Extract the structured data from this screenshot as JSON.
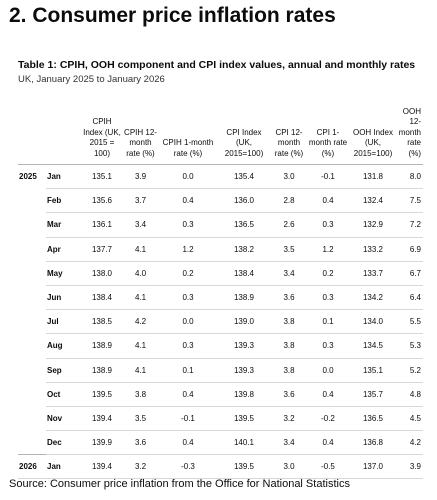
{
  "section": {
    "number": "2.",
    "title": "Consumer price inflation rates"
  },
  "table": {
    "title": "Table 1: CPIH, OOH component and CPI index values, annual and monthly rates",
    "subtitle": "UK, January 2025 to January 2026",
    "columns": [
      "",
      "",
      "CPIH Index (UK, 2015 = 100)",
      "CPIH 12-month rate (%)",
      "CPIH 1-month rate (%)",
      "CPI Index (UK, 2015=100)",
      "CPI 12-month rate (%)",
      "CPI 1-month rate (%)",
      "OOH Index (UK, 2015=100)",
      "OOH 12-month rate (%)"
    ],
    "rows": [
      {
        "year": "2025",
        "month": "Jan",
        "values": [
          "135.1",
          "3.9",
          "0.0",
          "135.4",
          "3.0",
          "-0.1",
          "131.8",
          "8.0"
        ]
      },
      {
        "year": "",
        "month": "Feb",
        "values": [
          "135.6",
          "3.7",
          "0.4",
          "136.0",
          "2.8",
          "0.4",
          "132.4",
          "7.5"
        ]
      },
      {
        "year": "",
        "month": "Mar",
        "values": [
          "136.1",
          "3.4",
          "0.3",
          "136.5",
          "2.6",
          "0.3",
          "132.9",
          "7.2"
        ]
      },
      {
        "year": "",
        "month": "Apr",
        "values": [
          "137.7",
          "4.1",
          "1.2",
          "138.2",
          "3.5",
          "1.2",
          "133.2",
          "6.9"
        ]
      },
      {
        "year": "",
        "month": "May",
        "values": [
          "138.0",
          "4.0",
          "0.2",
          "138.4",
          "3.4",
          "0.2",
          "133.7",
          "6.7"
        ]
      },
      {
        "year": "",
        "month": "Jun",
        "values": [
          "138.4",
          "4.1",
          "0.3",
          "138.9",
          "3.6",
          "0.3",
          "134.2",
          "6.4"
        ]
      },
      {
        "year": "",
        "month": "Jul",
        "values": [
          "138.5",
          "4.2",
          "0.0",
          "139.0",
          "3.8",
          "0.1",
          "134.0",
          "5.5"
        ]
      },
      {
        "year": "",
        "month": "Aug",
        "values": [
          "138.9",
          "4.1",
          "0.3",
          "139.3",
          "3.8",
          "0.3",
          "134.5",
          "5.3"
        ]
      },
      {
        "year": "",
        "month": "Sep",
        "values": [
          "138.9",
          "4.1",
          "0.1",
          "139.3",
          "3.8",
          "0.0",
          "135.1",
          "5.2"
        ]
      },
      {
        "year": "",
        "month": "Oct",
        "values": [
          "139.5",
          "3.8",
          "0.4",
          "139.8",
          "3.6",
          "0.4",
          "135.7",
          "4.8"
        ]
      },
      {
        "year": "",
        "month": "Nov",
        "values": [
          "139.4",
          "3.5",
          "-0.1",
          "139.5",
          "3.2",
          "-0.2",
          "136.5",
          "4.5"
        ]
      },
      {
        "year": "",
        "month": "Dec",
        "values": [
          "139.9",
          "3.6",
          "0.4",
          "140.1",
          "3.4",
          "0.4",
          "136.8",
          "4.2"
        ]
      },
      {
        "year": "2026",
        "month": "Jan",
        "values": [
          "139.4",
          "3.2",
          "-0.3",
          "139.5",
          "3.0",
          "-0.5",
          "137.0",
          "3.9"
        ]
      }
    ]
  },
  "source": "Source: Consumer price inflation from the Office for National Statistics"
}
